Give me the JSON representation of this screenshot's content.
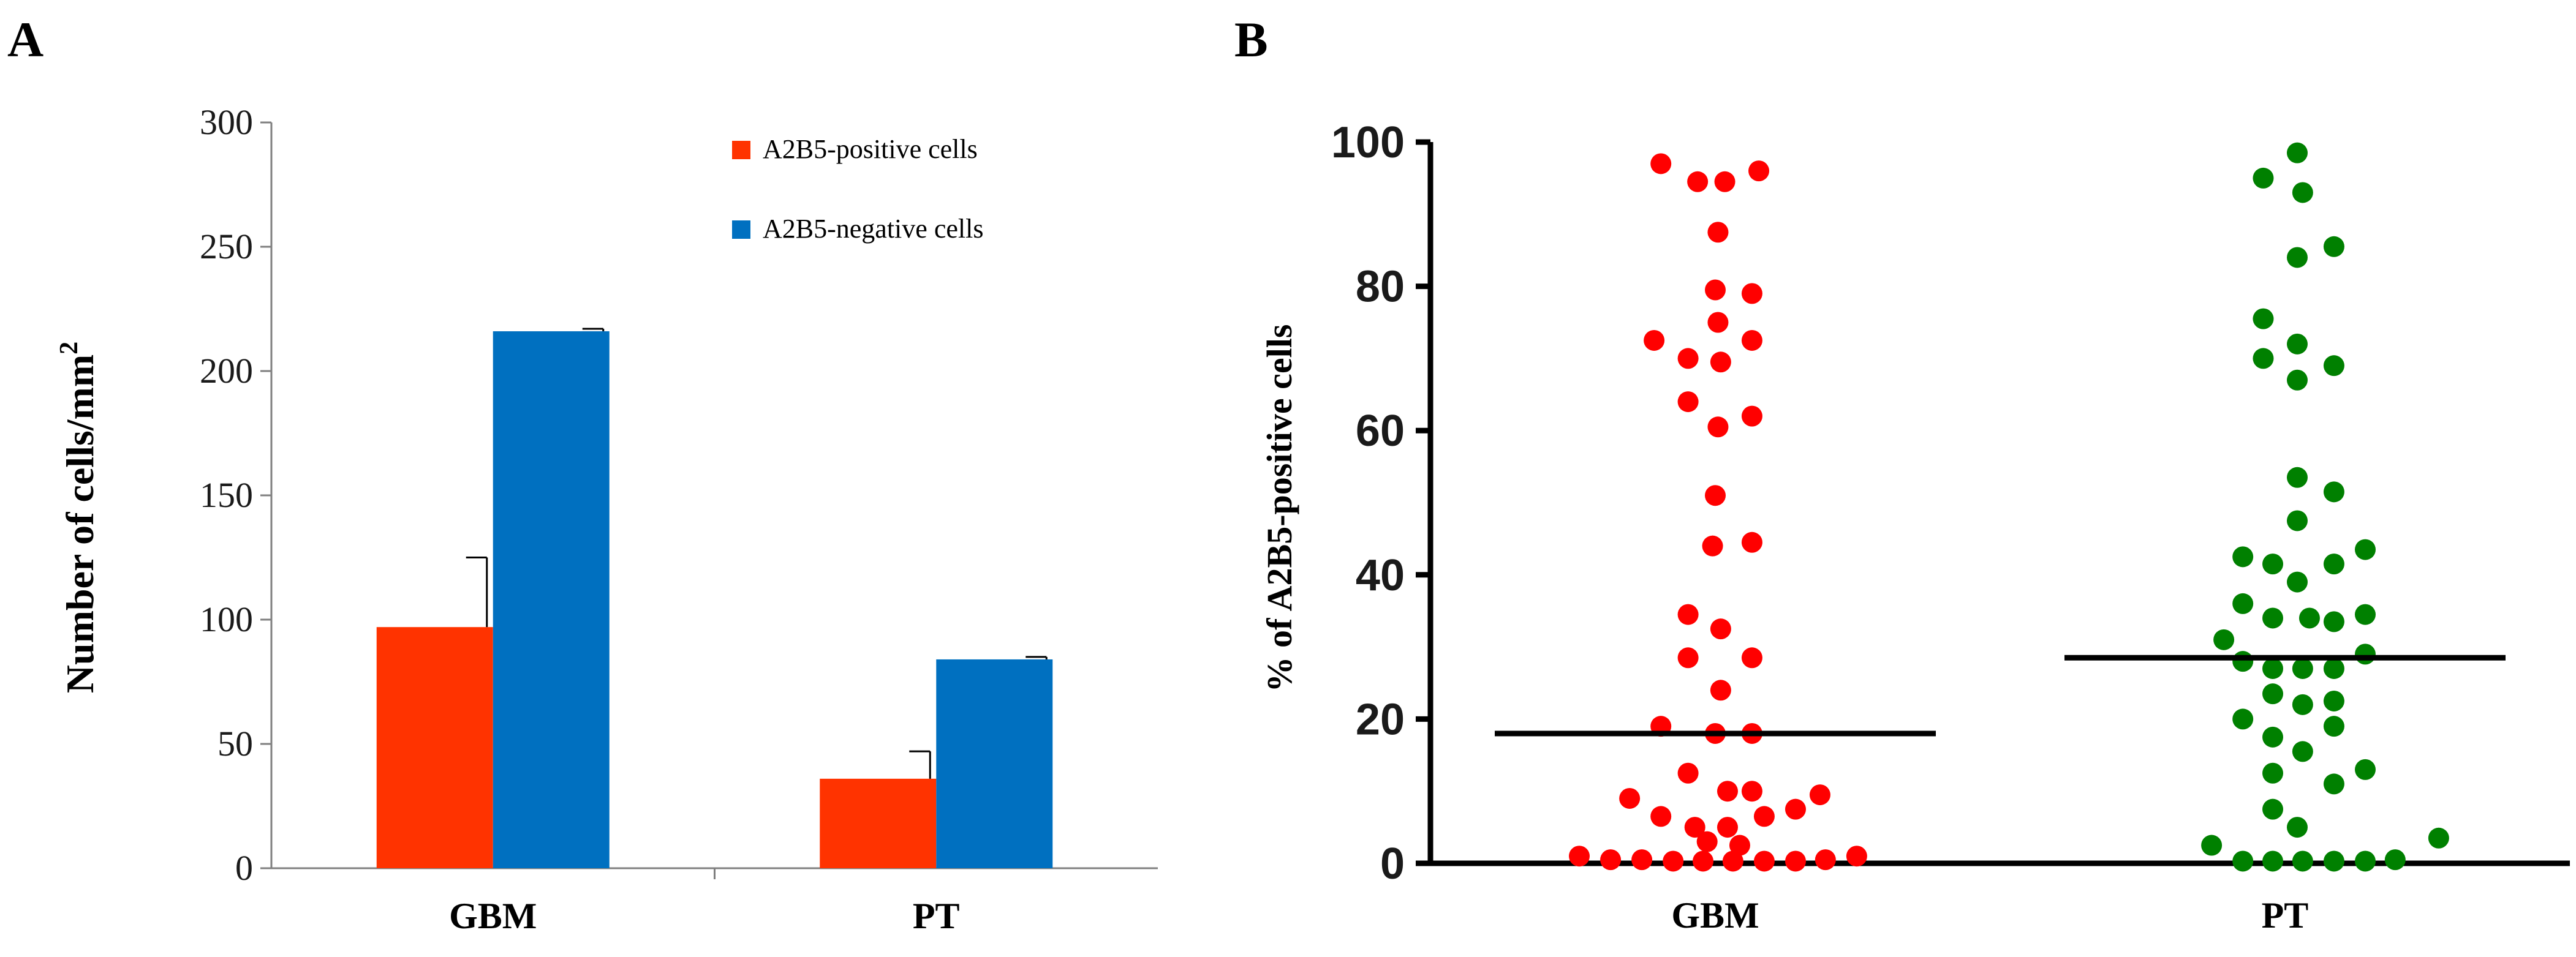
{
  "panels": {
    "a": {
      "label": "A"
    },
    "b": {
      "label": "B"
    }
  },
  "chart_data": [
    {
      "type": "bar",
      "panel": "A",
      "title": "",
      "xlabel": "",
      "ylabel": "Number of cells/mm",
      "ylabel_superscript": "2",
      "ylim": [
        0,
        300
      ],
      "yticks": [
        0,
        50,
        100,
        150,
        200,
        250,
        300
      ],
      "categories": [
        "GBM",
        "PT"
      ],
      "series": [
        {
          "name": "A2B5-positive  cells",
          "color": "#ff3300",
          "values": [
            97,
            36
          ],
          "errors": [
            28,
            11
          ]
        },
        {
          "name": "A2B5-negative  cells",
          "color": "#0070c0",
          "values": [
            216,
            84
          ],
          "errors": [
            1,
            1
          ]
        }
      ],
      "legend_position": "top-right",
      "grid": false
    },
    {
      "type": "scatter",
      "panel": "B",
      "title": "",
      "xlabel": "",
      "ylabel": "% of A2B5-positive cells",
      "ylim": [
        0,
        100
      ],
      "yticks": [
        0,
        20,
        40,
        60,
        80,
        100
      ],
      "categories": [
        "GBM",
        "PT"
      ],
      "grid": false,
      "series": [
        {
          "category": "GBM",
          "color": "#ff0000",
          "median": 18,
          "points": [
            {
              "x": -0.4,
              "y": 97
            },
            {
              "x": -0.13,
              "y": 94.5
            },
            {
              "x": 0.07,
              "y": 94.5
            },
            {
              "x": 0.32,
              "y": 96
            },
            {
              "x": 0.02,
              "y": 87.5
            },
            {
              "x": 0.0,
              "y": 79.5
            },
            {
              "x": 0.27,
              "y": 79
            },
            {
              "x": 0.02,
              "y": 75
            },
            {
              "x": -0.45,
              "y": 72.5
            },
            {
              "x": -0.2,
              "y": 70
            },
            {
              "x": 0.04,
              "y": 69.5
            },
            {
              "x": 0.27,
              "y": 72.5
            },
            {
              "x": -0.2,
              "y": 64
            },
            {
              "x": 0.27,
              "y": 62
            },
            {
              "x": 0.02,
              "y": 60.5
            },
            {
              "x": 0.0,
              "y": 51
            },
            {
              "x": -0.02,
              "y": 44
            },
            {
              "x": 0.27,
              "y": 44.5
            },
            {
              "x": -0.2,
              "y": 34.5
            },
            {
              "x": 0.04,
              "y": 32.5
            },
            {
              "x": -0.2,
              "y": 28.5
            },
            {
              "x": 0.27,
              "y": 28.5
            },
            {
              "x": 0.04,
              "y": 24
            },
            {
              "x": -0.4,
              "y": 19
            },
            {
              "x": 0.0,
              "y": 18
            },
            {
              "x": 0.27,
              "y": 18
            },
            {
              "x": -0.2,
              "y": 12.5
            },
            {
              "x": 0.09,
              "y": 10
            },
            {
              "x": 0.27,
              "y": 10
            },
            {
              "x": -0.63,
              "y": 9
            },
            {
              "x": 0.77,
              "y": 9.5
            },
            {
              "x": 0.59,
              "y": 7.5
            },
            {
              "x": -0.4,
              "y": 6.5
            },
            {
              "x": 0.36,
              "y": 6.5
            },
            {
              "x": -0.15,
              "y": 5
            },
            {
              "x": 0.09,
              "y": 5
            },
            {
              "x": -0.06,
              "y": 3
            },
            {
              "x": 0.18,
              "y": 2.5
            },
            {
              "x": -1.0,
              "y": 1
            },
            {
              "x": -0.77,
              "y": 0.5
            },
            {
              "x": -0.54,
              "y": 0.5
            },
            {
              "x": -0.31,
              "y": 0.3
            },
            {
              "x": -0.09,
              "y": 0.3
            },
            {
              "x": 0.13,
              "y": 0.3
            },
            {
              "x": 0.36,
              "y": 0.3
            },
            {
              "x": 0.59,
              "y": 0.3
            },
            {
              "x": 0.81,
              "y": 0.5
            },
            {
              "x": 1.04,
              "y": 1
            }
          ]
        },
        {
          "category": "PT",
          "color": "#008000",
          "median": 28.5,
          "points": [
            {
              "x": 0.09,
              "y": 98.5
            },
            {
              "x": -0.16,
              "y": 95
            },
            {
              "x": 0.13,
              "y": 93
            },
            {
              "x": 0.09,
              "y": 84
            },
            {
              "x": 0.36,
              "y": 85.5
            },
            {
              "x": -0.16,
              "y": 75.5
            },
            {
              "x": -0.16,
              "y": 70
            },
            {
              "x": 0.09,
              "y": 72
            },
            {
              "x": 0.09,
              "y": 67
            },
            {
              "x": 0.36,
              "y": 69
            },
            {
              "x": 0.09,
              "y": 53.5
            },
            {
              "x": 0.36,
              "y": 51.5
            },
            {
              "x": 0.09,
              "y": 47.5
            },
            {
              "x": -0.31,
              "y": 42.5
            },
            {
              "x": -0.09,
              "y": 41.5
            },
            {
              "x": 0.09,
              "y": 39
            },
            {
              "x": 0.36,
              "y": 41.5
            },
            {
              "x": 0.59,
              "y": 43.5
            },
            {
              "x": -0.45,
              "y": 31
            },
            {
              "x": -0.31,
              "y": 36
            },
            {
              "x": -0.09,
              "y": 34
            },
            {
              "x": 0.18,
              "y": 34
            },
            {
              "x": 0.36,
              "y": 33.5
            },
            {
              "x": 0.59,
              "y": 34.5
            },
            {
              "x": -0.31,
              "y": 28
            },
            {
              "x": -0.09,
              "y": 27
            },
            {
              "x": 0.13,
              "y": 27
            },
            {
              "x": 0.36,
              "y": 27
            },
            {
              "x": 0.59,
              "y": 29
            },
            {
              "x": -0.09,
              "y": 23.5
            },
            {
              "x": 0.13,
              "y": 22
            },
            {
              "x": 0.36,
              "y": 22.5
            },
            {
              "x": -0.31,
              "y": 20
            },
            {
              "x": -0.09,
              "y": 17.5
            },
            {
              "x": 0.36,
              "y": 19
            },
            {
              "x": 0.13,
              "y": 15.5
            },
            {
              "x": -0.09,
              "y": 12.5
            },
            {
              "x": 0.59,
              "y": 13
            },
            {
              "x": 0.36,
              "y": 11
            },
            {
              "x": -0.09,
              "y": 7.5
            },
            {
              "x": 0.09,
              "y": 5
            },
            {
              "x": -0.54,
              "y": 2.5
            },
            {
              "x": -0.31,
              "y": 0.3
            },
            {
              "x": -0.09,
              "y": 0.3
            },
            {
              "x": 0.13,
              "y": 0.3
            },
            {
              "x": 0.36,
              "y": 0.3
            },
            {
              "x": 0.59,
              "y": 0.3
            },
            {
              "x": 0.81,
              "y": 0.5
            },
            {
              "x": 1.13,
              "y": 3.5
            }
          ]
        }
      ]
    }
  ]
}
